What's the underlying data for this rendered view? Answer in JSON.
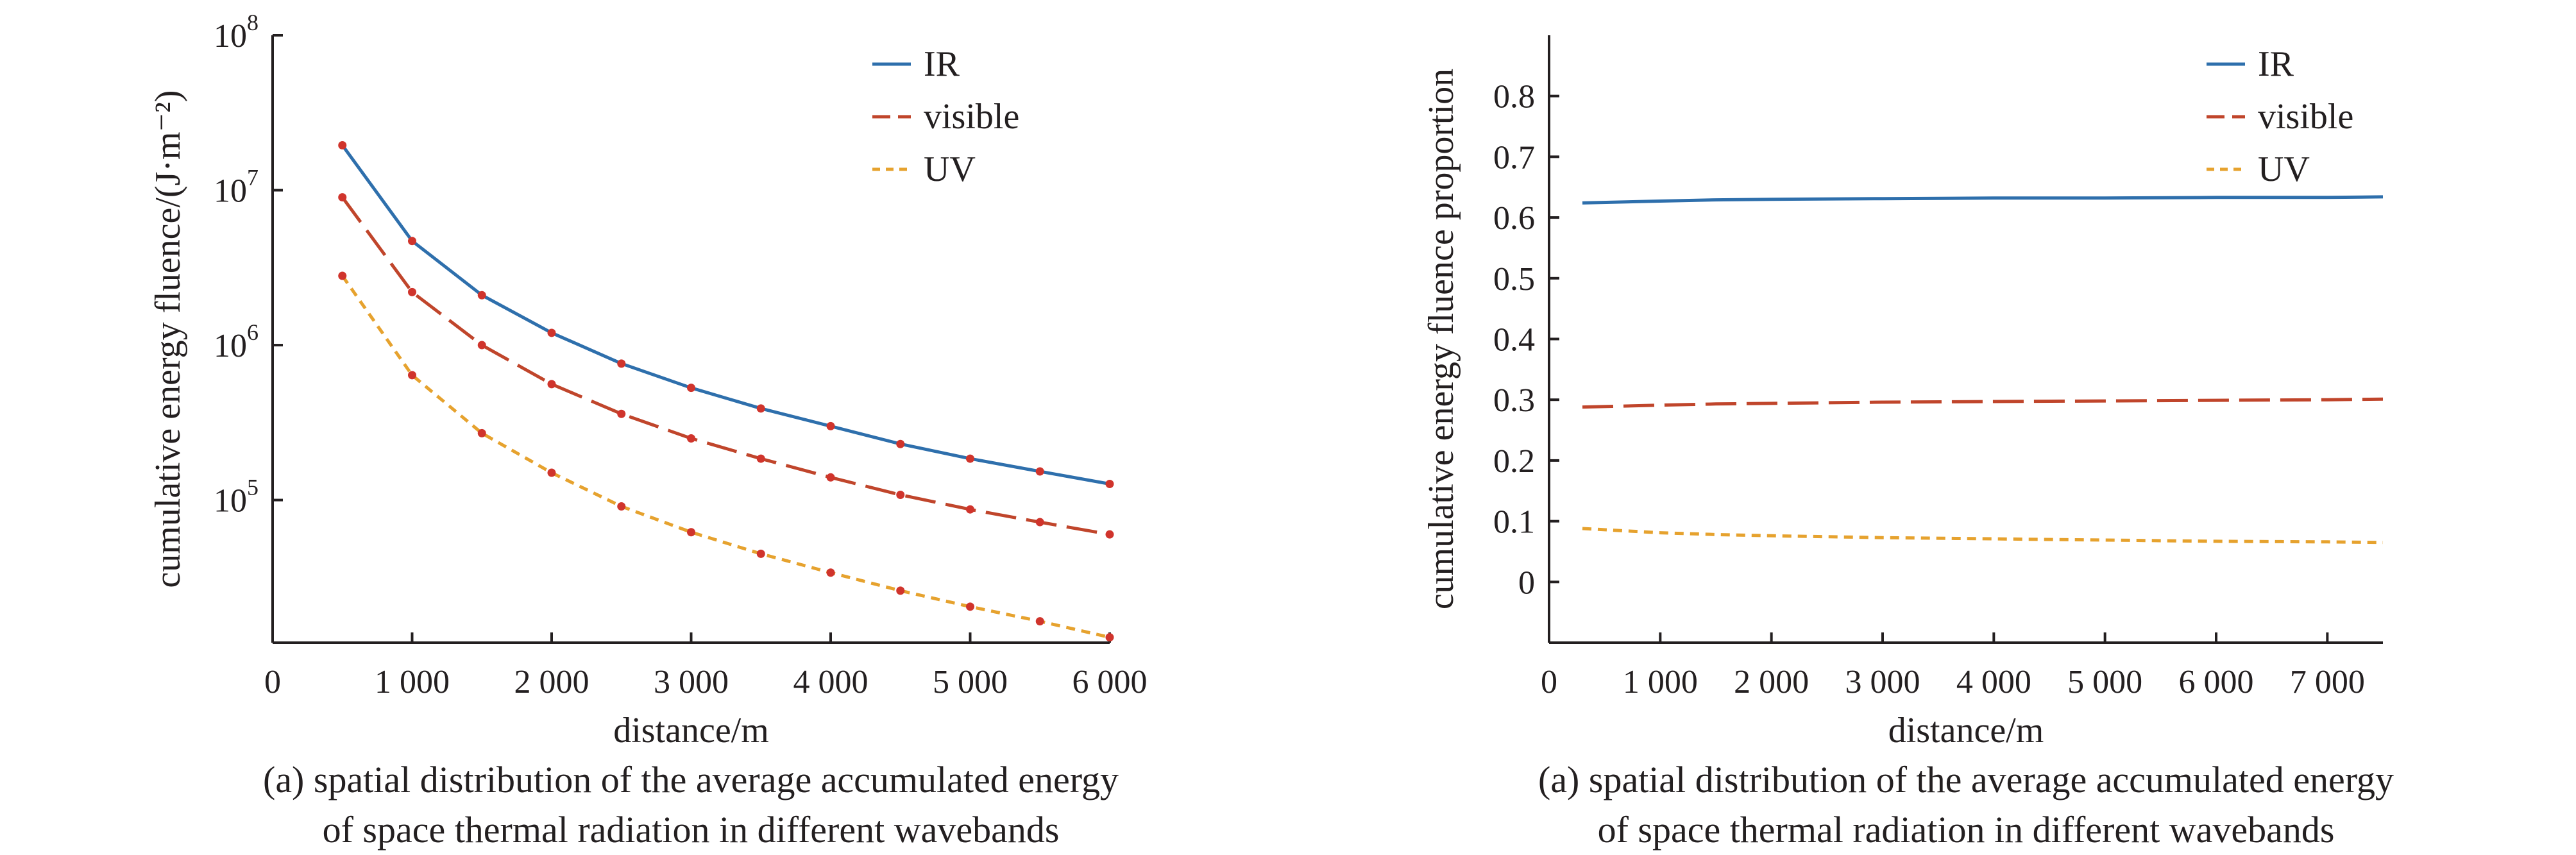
{
  "chart_data": [
    {
      "type": "line",
      "caption": [
        "(a) spatial distribution of the average accumulated energy",
        "of space thermal radiation in different wavebands"
      ],
      "xlabel": "distance/m",
      "ylabel": "cumulative energy fluence/(J·m⁻²)",
      "yscale": "log",
      "xlim": [
        0,
        6000
      ],
      "ylim": [
        12000,
        100000000
      ],
      "xticks": [
        0,
        1000,
        2000,
        3000,
        4000,
        5000,
        6000
      ],
      "xtick_labels": [
        "0",
        "1 000",
        "2 000",
        "3 000",
        "4 000",
        "5 000",
        "6 000"
      ],
      "yticks": [
        100000,
        1000000,
        10000000,
        100000000
      ],
      "ytick_labels": [
        {
          "base": "10",
          "exp": "5"
        },
        {
          "base": "10",
          "exp": "6"
        },
        {
          "base": "10",
          "exp": "7"
        },
        {
          "base": "10",
          "exp": "8"
        }
      ],
      "legend_position": "top-right",
      "x": [
        500,
        1000,
        1500,
        2000,
        2500,
        3000,
        3500,
        4000,
        4500,
        5000,
        5500,
        6000
      ],
      "series": [
        {
          "name": "IR",
          "color": "#2e6fac",
          "dash": "solid",
          "markers": true,
          "values": [
            19500000,
            4700000,
            2100000,
            1200000,
            760000,
            530000,
            390000,
            300000,
            230000,
            185000,
            153000,
            127000
          ]
        },
        {
          "name": "visible",
          "color": "#c0452b",
          "dash": "long",
          "markers": true,
          "values": [
            9000000,
            2200000,
            1000000,
            560000,
            360000,
            250000,
            185000,
            140000,
            108000,
            87000,
            72000,
            60000
          ]
        },
        {
          "name": "UV",
          "color": "#e6a22e",
          "dash": "short",
          "markers": true,
          "values": [
            2800000,
            640000,
            270000,
            150000,
            91000,
            62000,
            45000,
            34000,
            26000,
            20500,
            16500,
            13000
          ]
        }
      ]
    },
    {
      "type": "line",
      "caption": [
        "(a) spatial distribution of the average accumulated energy",
        "of space thermal radiation in different wavebands"
      ],
      "xlabel": "distance/m",
      "ylabel": "cumulative energy fluence proportion",
      "yscale": "linear",
      "xlim": [
        0,
        7500
      ],
      "ylim": [
        -0.1,
        0.9
      ],
      "xticks": [
        0,
        1000,
        2000,
        3000,
        4000,
        5000,
        6000,
        7000
      ],
      "xtick_labels": [
        "0",
        "1 000",
        "2 000",
        "3 000",
        "4 000",
        "5 000",
        "6 000",
        "7 000"
      ],
      "yticks": [
        0,
        0.1,
        0.2,
        0.3,
        0.4,
        0.5,
        0.6,
        0.7,
        0.8
      ],
      "ytick_labels": [
        "0",
        "0.1",
        "0.2",
        "0.3",
        "0.4",
        "0.5",
        "0.6",
        "0.7",
        "0.8"
      ],
      "legend_position": "top-right",
      "x": [
        300,
        1000,
        1500,
        2000,
        3000,
        4000,
        5000,
        6000,
        7000,
        7500
      ],
      "series": [
        {
          "name": "IR",
          "color": "#2e6fac",
          "dash": "solid",
          "markers": false,
          "values": [
            0.624,
            0.627,
            0.629,
            0.63,
            0.631,
            0.632,
            0.632,
            0.633,
            0.633,
            0.634
          ]
        },
        {
          "name": "visible",
          "color": "#c0452b",
          "dash": "long",
          "markers": false,
          "values": [
            0.288,
            0.291,
            0.293,
            0.294,
            0.296,
            0.297,
            0.298,
            0.299,
            0.3,
            0.301
          ]
        },
        {
          "name": "UV",
          "color": "#e6a22e",
          "dash": "short",
          "markers": false,
          "values": [
            0.088,
            0.081,
            0.078,
            0.076,
            0.073,
            0.071,
            0.069,
            0.067,
            0.066,
            0.065
          ]
        }
      ]
    }
  ]
}
